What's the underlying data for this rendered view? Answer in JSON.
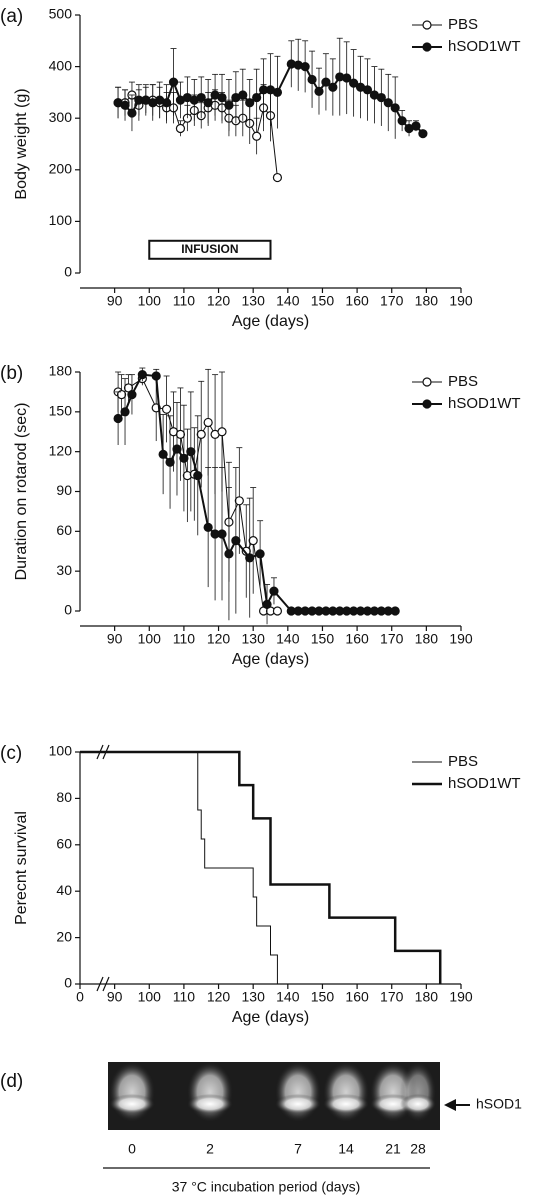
{
  "chart_data": [
    {
      "type": "line",
      "panel": "(a)",
      "ylabel": "Body weight (g)",
      "xlabel": "Age (days)",
      "xlim": [
        80,
        190
      ],
      "xticks": [
        90,
        100,
        110,
        120,
        130,
        140,
        150,
        160,
        170,
        180,
        190
      ],
      "ylim": [
        0,
        500
      ],
      "yticks": [
        0,
        100,
        200,
        300,
        400,
        500
      ],
      "legend": "top-right",
      "annotation": {
        "text": "INFUSION",
        "x_start": 100,
        "x_end": 135
      },
      "series": [
        {
          "name": "PBS",
          "color": "#111111",
          "marker": "open",
          "x": [
            91,
            93,
            95,
            97,
            99,
            101,
            103,
            105,
            107,
            109,
            111,
            113,
            115,
            117,
            119,
            121,
            123,
            125,
            127,
            129,
            131,
            133,
            135,
            137
          ],
          "values": [
            330,
            330,
            345,
            325,
            335,
            335,
            330,
            320,
            320,
            280,
            300,
            315,
            305,
            320,
            325,
            320,
            300,
            295,
            300,
            290,
            265,
            320,
            305,
            185
          ],
          "errors": [
            30,
            25,
            25,
            30,
            25,
            30,
            30,
            30,
            30,
            15,
            25,
            30,
            25,
            30,
            30,
            30,
            35,
            30,
            35,
            40,
            35,
            45,
            50,
            0
          ]
        },
        {
          "name": "hSOD1WT",
          "color": "#111111",
          "marker": "filled",
          "x": [
            91,
            93,
            95,
            97,
            99,
            101,
            103,
            105,
            107,
            109,
            111,
            113,
            115,
            117,
            119,
            121,
            123,
            125,
            127,
            129,
            131,
            133,
            135,
            137,
            141,
            143,
            145,
            147,
            149,
            151,
            153,
            155,
            157,
            159,
            161,
            163,
            165,
            167,
            169,
            171,
            173,
            175,
            177,
            179
          ],
          "values": [
            330,
            325,
            310,
            335,
            335,
            330,
            335,
            330,
            370,
            335,
            340,
            335,
            340,
            330,
            345,
            340,
            325,
            340,
            345,
            330,
            340,
            355,
            355,
            350,
            405,
            403,
            400,
            375,
            352,
            370,
            360,
            380,
            378,
            368,
            360,
            355,
            345,
            340,
            330,
            320,
            295,
            280,
            285,
            270
          ],
          "errors": [
            30,
            30,
            35,
            30,
            30,
            35,
            35,
            35,
            65,
            35,
            40,
            40,
            40,
            45,
            40,
            45,
            50,
            50,
            50,
            45,
            55,
            60,
            70,
            70,
            45,
            50,
            50,
            55,
            45,
            55,
            55,
            75,
            70,
            65,
            60,
            60,
            55,
            55,
            55,
            60,
            20,
            15,
            10,
            0
          ]
        }
      ]
    },
    {
      "type": "line",
      "panel": "(b)",
      "ylabel": "Duration on rotarod (sec)",
      "xlabel": "Age (days)",
      "xlim": [
        80,
        190
      ],
      "xticks": [
        90,
        100,
        110,
        120,
        130,
        140,
        150,
        160,
        170,
        180,
        190
      ],
      "ylim": [
        0,
        180
      ],
      "yticks": [
        0,
        30,
        60,
        90,
        120,
        150,
        180
      ],
      "legend": "top-right",
      "series": [
        {
          "name": "PBS",
          "color": "#111111",
          "marker": "open",
          "x": [
            91,
            92,
            94,
            98,
            102,
            105,
            107,
            109,
            111,
            113,
            115,
            117,
            119,
            121,
            123,
            126,
            128,
            130,
            133,
            135,
            137
          ],
          "values": [
            165,
            163,
            168,
            175,
            153,
            152,
            135,
            133,
            102,
            103,
            133,
            142,
            133,
            135,
            67,
            83,
            45,
            53,
            0,
            0,
            0
          ],
          "errors": [
            15,
            15,
            10,
            5,
            25,
            25,
            30,
            35,
            35,
            35,
            40,
            40,
            45,
            45,
            45,
            40,
            35,
            40,
            0,
            0,
            0
          ]
        },
        {
          "name": "hSOD1WT",
          "color": "#111111",
          "marker": "filled",
          "x": [
            91,
            93,
            95,
            98,
            102,
            104,
            106,
            108,
            110,
            112,
            114,
            117,
            119,
            121,
            123,
            125,
            129,
            132,
            134,
            136,
            141,
            143,
            145,
            147,
            149,
            151,
            153,
            155,
            157,
            159,
            161,
            163,
            165,
            167,
            169,
            171
          ],
          "values": [
            145,
            150,
            163,
            178,
            177,
            118,
            112,
            122,
            115,
            120,
            102,
            63,
            58,
            58,
            43,
            53,
            40,
            43,
            5,
            15,
            0,
            0,
            0,
            0,
            0,
            0,
            0,
            0,
            0,
            0,
            0,
            0,
            0,
            0,
            0,
            0
          ],
          "errors": [
            20,
            25,
            15,
            5,
            5,
            30,
            35,
            35,
            40,
            45,
            45,
            45,
            50,
            50,
            50,
            55,
            45,
            25,
            15,
            10,
            0,
            0,
            0,
            0,
            0,
            0,
            0,
            0,
            0,
            0,
            0,
            0,
            0,
            0,
            0,
            0
          ]
        }
      ]
    },
    {
      "type": "step",
      "panel": "(c)",
      "ylabel": "Perecnt survival",
      "xlabel": "Age (days)",
      "xlim": [
        80,
        190
      ],
      "xticks": [
        {
          "value": 80,
          "label": "0"
        },
        90,
        100,
        110,
        120,
        130,
        140,
        150,
        160,
        170,
        180,
        190
      ],
      "ylim": [
        0,
        100
      ],
      "yticks": [
        0,
        20,
        40,
        60,
        80,
        100
      ],
      "legend": "top-right",
      "series": [
        {
          "name": "PBS",
          "color": "#111111",
          "width": 1,
          "x": [
            80,
            114,
            115,
            116,
            130,
            131,
            135,
            137
          ],
          "values": [
            100,
            75,
            62.5,
            50,
            37.5,
            25,
            12.5,
            0
          ]
        },
        {
          "name": "hSOD1WT",
          "color": "#111111",
          "width": 2.5,
          "x": [
            80,
            126,
            130,
            135,
            152,
            171,
            184
          ],
          "values": [
            100,
            85.7,
            71.4,
            42.9,
            28.6,
            14.3,
            0
          ]
        }
      ]
    }
  ],
  "gel": {
    "panel": "(d)",
    "lanes": [
      "0",
      "2",
      "7",
      "14",
      "21",
      "28"
    ],
    "band_label": "hSOD1",
    "xlabel": "37 °C incubation period (days)"
  }
}
